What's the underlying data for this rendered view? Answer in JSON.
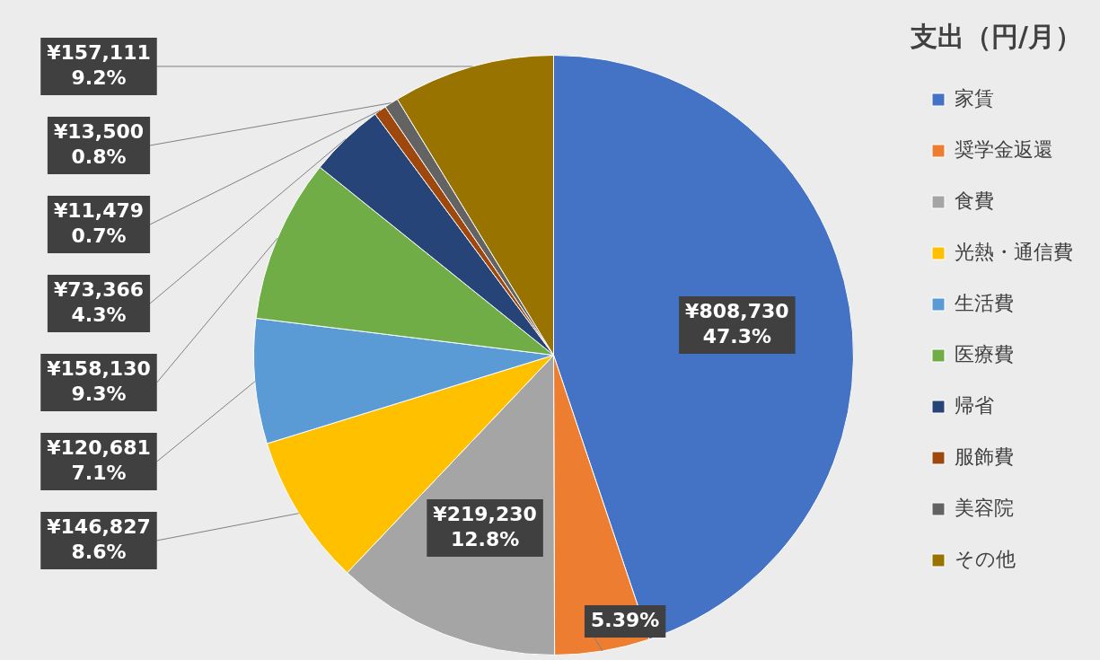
{
  "chart_data": {
    "type": "pie",
    "title": "支出（円/月）",
    "categories": [
      "家賃",
      "奨学金返還",
      "食費",
      "光熱・通信費",
      "生活費",
      "医療費",
      "帰省",
      "服飾費",
      "美容院",
      "その他"
    ],
    "values": [
      47.3,
      5.39,
      12.8,
      8.6,
      7.1,
      9.3,
      4.3,
      0.7,
      0.8,
      9.2
    ],
    "colors": [
      "#4472c4",
      "#ed7d31",
      "#a5a5a5",
      "#ffc000",
      "#5b9bd5",
      "#70ad47",
      "#264478",
      "#9e480e",
      "#636363",
      "#997300"
    ],
    "value_labels": [
      "¥808,730\n47.3%",
      "5.39%",
      "¥219,230\n12.8%",
      "¥146,827\n8.6%",
      "¥120,681\n7.1%",
      "¥158,130\n9.3%",
      "¥73,366\n4.3%",
      "¥11,479\n0.7%",
      "¥13,500\n0.8%",
      "¥157,111\n9.2%"
    ],
    "legend": "right"
  }
}
